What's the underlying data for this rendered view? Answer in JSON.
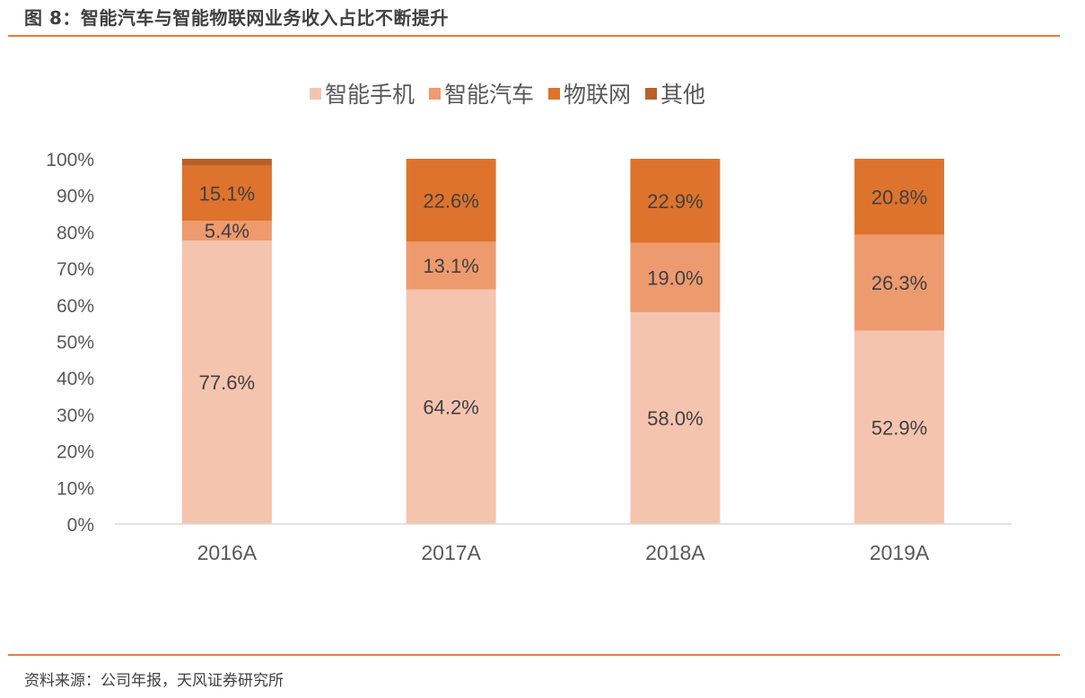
{
  "header": {
    "title": "图 8：智能汽车与智能物联网业务收入占比不断提升"
  },
  "footer": {
    "source": "资料来源：公司年报，天风证券研究所"
  },
  "colors": {
    "accent_rule": "#ED7D31",
    "smartphone": "#F5C4AF",
    "smart_car": "#EE9A6F",
    "iot": "#DE732D",
    "other": "#B8602A",
    "axis_text": "#595959",
    "label_text": "#404040"
  },
  "chart_data": {
    "type": "bar",
    "stacked": true,
    "title": "",
    "xlabel": "",
    "ylabel": "",
    "ylim": [
      0,
      100
    ],
    "yticks": [
      "0%",
      "10%",
      "20%",
      "30%",
      "40%",
      "50%",
      "60%",
      "70%",
      "80%",
      "90%",
      "100%"
    ],
    "categories": [
      "2016A",
      "2017A",
      "2018A",
      "2019A"
    ],
    "legend_position": "top-center",
    "grid": false,
    "series": [
      {
        "name": "智能手机",
        "values": [
          77.6,
          64.2,
          58.0,
          52.9
        ],
        "labels": [
          "77.6%",
          "64.2%",
          "58.0%",
          "52.9%"
        ]
      },
      {
        "name": "智能汽车",
        "values": [
          5.4,
          13.1,
          19.0,
          26.3
        ],
        "labels": [
          "5.4%",
          "13.1%",
          "19.0%",
          "26.3%"
        ]
      },
      {
        "name": "物联网",
        "values": [
          15.1,
          22.6,
          22.9,
          20.8
        ],
        "labels": [
          "15.1%",
          "22.6%",
          "22.9%",
          "20.8%"
        ]
      },
      {
        "name": "其他",
        "values": [
          1.9,
          0.1,
          0.1,
          0.0
        ],
        "labels": [
          "",
          "",
          "",
          ""
        ]
      }
    ]
  }
}
